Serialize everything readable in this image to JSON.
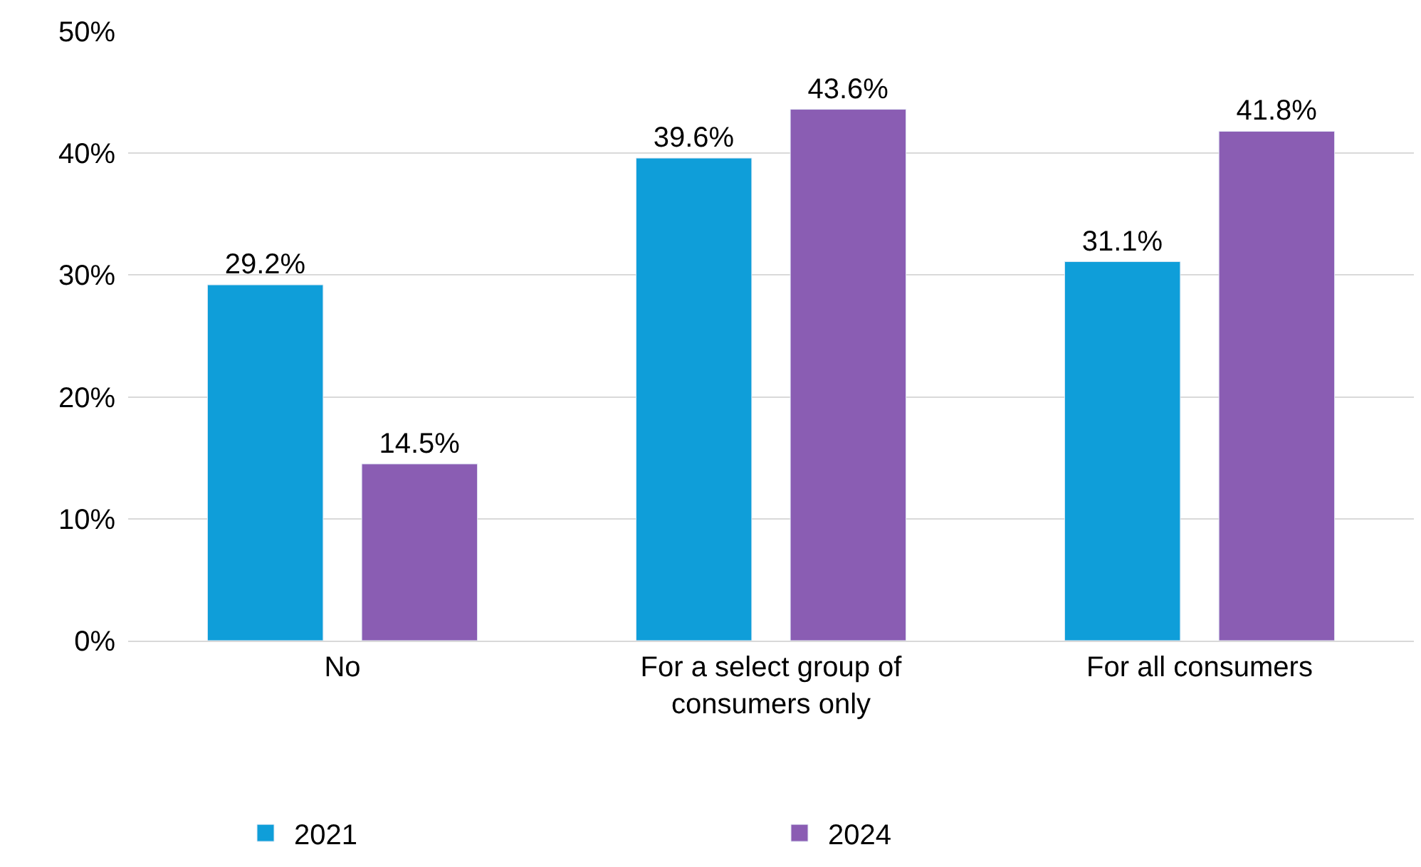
{
  "chart_data": {
    "type": "bar",
    "categories": [
      "No",
      "For a select group of consumers only",
      "For all consumers"
    ],
    "series": [
      {
        "name": "2021",
        "color": "#0f9ed9",
        "values": [
          29.2,
          39.6,
          31.1
        ],
        "value_labels": [
          "29.2%",
          "39.6%",
          "31.1%"
        ]
      },
      {
        "name": "2024",
        "color": "#8a5db3",
        "values": [
          14.5,
          43.6,
          41.8
        ],
        "value_labels": [
          "14.5%",
          "43.6%",
          "41.8%"
        ]
      }
    ],
    "ylim": [
      0,
      50
    ],
    "yticks": [
      {
        "value": 0,
        "label": "0%"
      },
      {
        "value": 10,
        "label": "10%"
      },
      {
        "value": 20,
        "label": "20%"
      },
      {
        "value": 30,
        "label": "30%"
      },
      {
        "value": 40,
        "label": "40%"
      },
      {
        "value": 50,
        "label": "50%"
      }
    ],
    "grid": "y",
    "legend": "bottom"
  }
}
